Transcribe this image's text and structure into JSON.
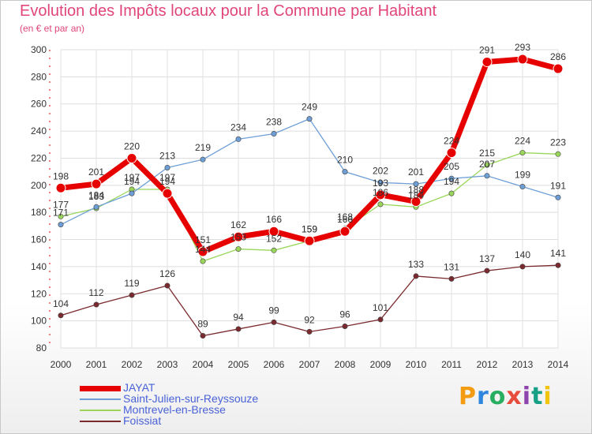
{
  "title": "Evolution des Impôts locaux pour la Commune par Habitant",
  "subtitle": "(en € et par an)",
  "logo_text": "Proxiti",
  "chart_data": {
    "type": "line",
    "title": "Evolution des Impôts locaux pour la Commune par Habitant",
    "subtitle": "(en € et par an)",
    "xlabel": "",
    "ylabel": "",
    "x": [
      "2000",
      "2001",
      "2002",
      "2003",
      "2004",
      "2005",
      "2006",
      "2007",
      "2008",
      "2009",
      "2010",
      "2011",
      "2012",
      "2013",
      "2014"
    ],
    "ylim": [
      80,
      300
    ],
    "yticks": [
      "80",
      "100",
      "120",
      "140",
      "160",
      "180",
      "200",
      "220",
      "240",
      "260",
      "280",
      "300"
    ],
    "grid": true,
    "legend_position": "bottom-left",
    "series": [
      {
        "name": "JAYAT",
        "color": "#e60000",
        "values": [
          198,
          201,
          220,
          194,
          151,
          162,
          166,
          159,
          166,
          193,
          188,
          224,
          291,
          293,
          286
        ],
        "labels": [
          "198",
          "201",
          "220",
          "194",
          "151",
          "162",
          "166",
          "159",
          "166",
          "193",
          "188",
          "224",
          "291",
          "293",
          "286"
        ]
      },
      {
        "name": "Saint-Julien-sur-Reyssouze",
        "color": "#6d9fd6",
        "values": [
          171,
          184,
          194,
          213,
          219,
          234,
          238,
          249,
          210,
          202,
          201,
          205,
          207,
          199,
          191
        ],
        "labels": [
          "171",
          "184",
          "194",
          "213",
          "219",
          "234",
          "238",
          "249",
          "210",
          "202",
          "201",
          "205",
          "207",
          "199",
          "191"
        ]
      },
      {
        "name": "Montrevel-en-Bresse",
        "color": "#99d65a",
        "values": [
          177,
          183,
          197,
          197,
          144,
          153,
          152,
          159,
          168,
          186,
          184,
          194,
          215,
          224,
          223
        ],
        "labels": [
          "177",
          "183",
          "197",
          "197",
          "144",
          "153",
          "152",
          "159",
          "168",
          "186",
          "184",
          "194",
          "215",
          "224",
          "223"
        ]
      },
      {
        "name": "Foissiat",
        "color": "#7a2a2e",
        "values": [
          104,
          112,
          119,
          126,
          89,
          94,
          99,
          92,
          96,
          101,
          133,
          131,
          137,
          140,
          141
        ],
        "labels": [
          "104",
          "112",
          "119",
          "126",
          "89",
          "94",
          "99",
          "92",
          "96",
          "101",
          "133",
          "131",
          "137",
          "140",
          "141"
        ]
      }
    ]
  }
}
